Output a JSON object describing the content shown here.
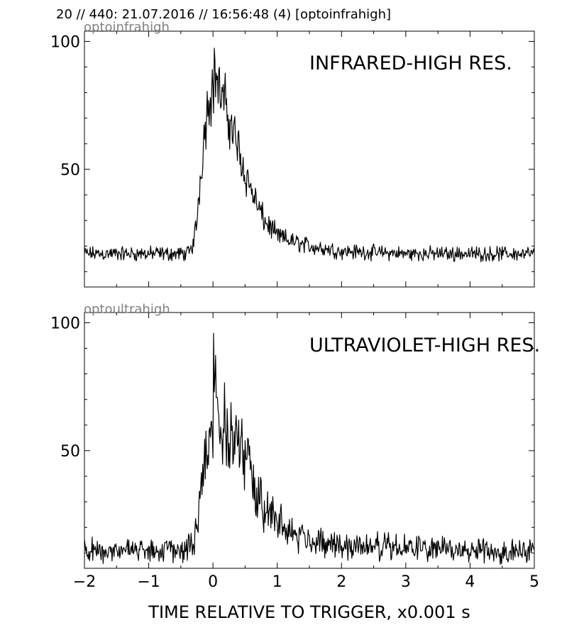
{
  "figure_title": "20 // 440:   21.07.2016 // 16:56:48 (4)  [optoinfrahigh]",
  "chart_data": [
    {
      "type": "line",
      "source_label": "optoinfrahigh",
      "panel_label": "INFRARED-HIGH RES.",
      "xlim": [
        -2,
        5
      ],
      "ylim": [
        4,
        104
      ],
      "yticks": [
        50,
        100
      ],
      "xticks": [],
      "xlabel": "",
      "ylabel": "",
      "baseline": 17,
      "keypoints": [
        [
          -2.0,
          17
        ],
        [
          -0.4,
          17
        ],
        [
          -0.33,
          19
        ],
        [
          -0.3,
          22
        ],
        [
          -0.25,
          30
        ],
        [
          -0.2,
          46
        ],
        [
          -0.15,
          60
        ],
        [
          -0.1,
          72
        ],
        [
          -0.05,
          80
        ],
        [
          0.0,
          82
        ],
        [
          0.04,
          89
        ],
        [
          0.1,
          80
        ],
        [
          0.2,
          74
        ],
        [
          0.3,
          66
        ],
        [
          0.4,
          58
        ],
        [
          0.5,
          48
        ],
        [
          0.6,
          42
        ],
        [
          0.7,
          35
        ],
        [
          0.8,
          30
        ],
        [
          0.9,
          27
        ],
        [
          1.0,
          24
        ],
        [
          1.2,
          22
        ],
        [
          1.5,
          20
        ],
        [
          2.0,
          18
        ],
        [
          3.0,
          17
        ],
        [
          4.0,
          17
        ],
        [
          5.0,
          17
        ]
      ],
      "noise": 2.2
    },
    {
      "type": "line",
      "source_label": "optoultrahigh",
      "panel_label": "ULTRAVIOLET-HIGH RES.",
      "xlim": [
        -2,
        5
      ],
      "ylim": [
        4,
        104
      ],
      "yticks": [
        50,
        100
      ],
      "xticks": [
        -2,
        -1,
        0,
        1,
        2,
        3,
        4,
        5
      ],
      "xtick_labels": [
        "−2",
        "−1",
        "0",
        "1",
        "2",
        "3",
        "4",
        "5"
      ],
      "xlabel": "TIME RELATIVE TO TRIGGER,   x0.001 s",
      "ylabel": "",
      "baseline": 11,
      "keypoints": [
        [
          -2.0,
          11
        ],
        [
          -0.4,
          11
        ],
        [
          -0.3,
          14
        ],
        [
          -0.25,
          22
        ],
        [
          -0.2,
          36
        ],
        [
          -0.1,
          50
        ],
        [
          0.0,
          60
        ],
        [
          0.01,
          84
        ],
        [
          0.1,
          60
        ],
        [
          0.2,
          58
        ],
        [
          0.3,
          56
        ],
        [
          0.4,
          52
        ],
        [
          0.5,
          46
        ],
        [
          0.6,
          40
        ],
        [
          0.7,
          34
        ],
        [
          0.8,
          29
        ],
        [
          0.9,
          26
        ],
        [
          1.0,
          22
        ],
        [
          1.2,
          18
        ],
        [
          1.5,
          15
        ],
        [
          2.0,
          13
        ],
        [
          3.0,
          12
        ],
        [
          4.0,
          11
        ],
        [
          5.0,
          11
        ]
      ],
      "noise": 3.6
    }
  ]
}
